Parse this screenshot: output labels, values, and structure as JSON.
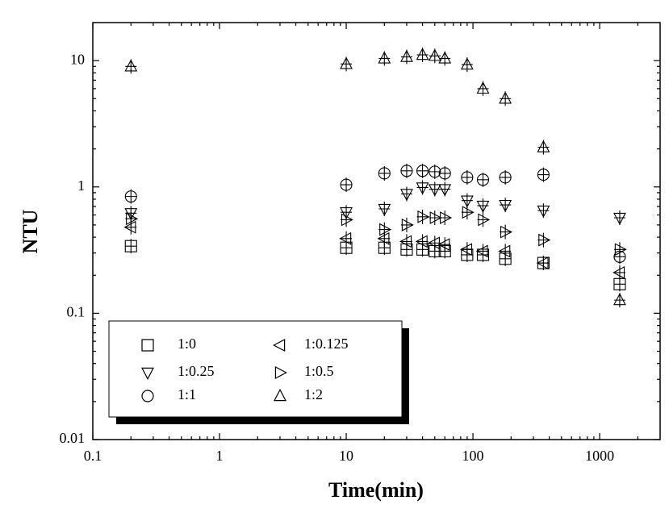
{
  "chart_data": {
    "type": "scatter",
    "xlabel": "Time(min)",
    "ylabel": "NTU",
    "x": [
      0.2,
      10,
      20,
      30,
      40,
      50,
      60,
      90,
      120,
      180,
      360,
      1440
    ],
    "xlim": [
      0.1,
      3000
    ],
    "ylim": [
      0.01,
      20
    ],
    "xticks": [
      0.1,
      1,
      10,
      100,
      1000
    ],
    "yticks": [
      0.01,
      0.1,
      1,
      10
    ],
    "xscale": "log",
    "yscale": "log",
    "legend": "lower left",
    "series": [
      {
        "name": "1:0",
        "color": "#000000",
        "marker": "square",
        "values": [
          0.34,
          0.33,
          0.33,
          0.32,
          0.32,
          0.31,
          0.31,
          0.29,
          0.29,
          0.27,
          0.25,
          0.17
        ]
      },
      {
        "name": "1:0.125",
        "color": "#000000",
        "marker": "triangle-left",
        "values": [
          0.48,
          0.39,
          0.39,
          0.37,
          0.37,
          0.36,
          0.35,
          0.32,
          0.31,
          0.31,
          0.25,
          0.21
        ]
      },
      {
        "name": "1:0.25",
        "color": "#000000",
        "marker": "triangle-down",
        "values": [
          0.62,
          0.63,
          0.67,
          0.88,
          0.99,
          0.96,
          0.96,
          0.78,
          0.71,
          0.72,
          0.65,
          0.57
        ]
      },
      {
        "name": "1:0.5",
        "color": "#000000",
        "marker": "triangle-right",
        "values": [
          0.56,
          0.55,
          0.46,
          0.5,
          0.58,
          0.57,
          0.57,
          0.63,
          0.55,
          0.44,
          0.38,
          0.32
        ]
      },
      {
        "name": "1:1",
        "color": "#000000",
        "marker": "circle",
        "values": [
          0.84,
          1.04,
          1.28,
          1.34,
          1.34,
          1.32,
          1.28,
          1.19,
          1.14,
          1.19,
          1.25,
          0.28
        ]
      },
      {
        "name": "1:2",
        "color": "#000000",
        "marker": "triangle-up",
        "values": [
          9.0,
          9.4,
          10.4,
          10.7,
          11.1,
          10.9,
          10.4,
          9.3,
          6.0,
          5.0,
          2.06,
          0.127
        ]
      }
    ]
  }
}
